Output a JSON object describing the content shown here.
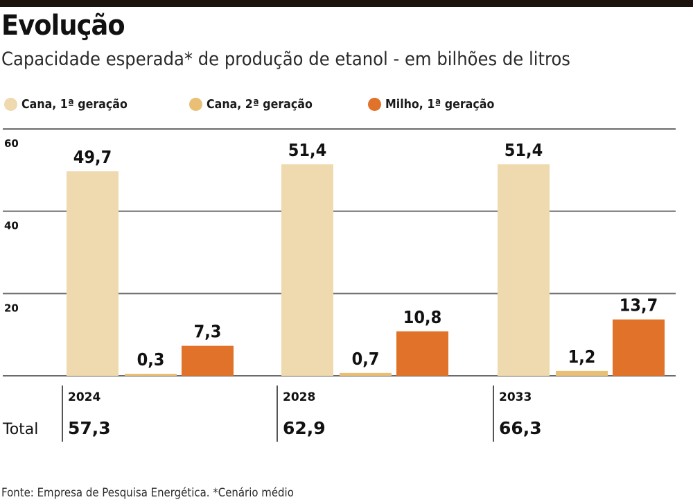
{
  "header": {
    "title": "Evolução",
    "subtitle": "Capacidade esperada* de produção de etanol - em bilhões de litros"
  },
  "footer": {
    "source": "Fonte: Empresa de Pesquisa Energética. *Cenário médio"
  },
  "totals": {
    "label": "Total",
    "values": [
      "57,3",
      "62,9",
      "66,3"
    ]
  },
  "chart_data": {
    "type": "bar",
    "title": "Evolução",
    "subtitle": "Capacidade esperada* de produção de etanol - em bilhões de litros",
    "xlabel": "",
    "ylabel": "",
    "categories": [
      "2024",
      "2028",
      "2033"
    ],
    "series": [
      {
        "name": "Cana, 1ª geração",
        "color": "#efd9ae",
        "values": [
          49.7,
          51.4,
          51.4
        ],
        "labels": [
          "49,7",
          "51,4",
          "51,4"
        ]
      },
      {
        "name": "Cana, 2ª geração",
        "color": "#e8bf75",
        "values": [
          0.3,
          0.7,
          1.2
        ],
        "labels": [
          "0,3",
          "0,7",
          "1,2"
        ]
      },
      {
        "name": "Milho, 1ª geração",
        "color": "#e07229",
        "values": [
          7.3,
          10.8,
          13.7
        ],
        "labels": [
          "7,3",
          "10,8",
          "13,7"
        ]
      }
    ],
    "yticks": [
      20,
      40,
      60
    ],
    "ytick_labels": [
      "20",
      "40",
      "60"
    ],
    "ylim": [
      0,
      60
    ],
    "grid": true,
    "legend": "top",
    "totals": [
      57.3,
      62.9,
      66.3
    ]
  }
}
